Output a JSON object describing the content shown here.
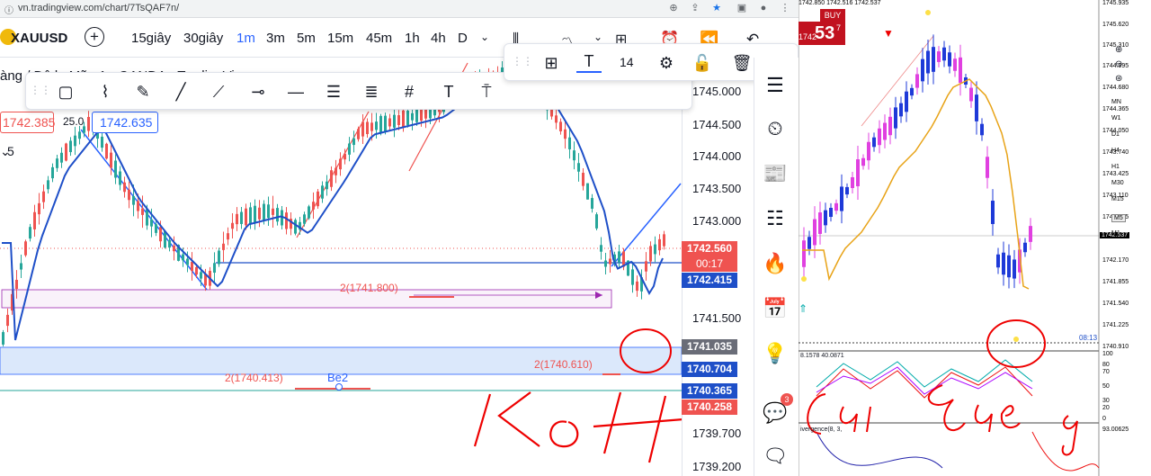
{
  "browser": {
    "url": "vn.tradingview.com/chart/7TsQAF7n/"
  },
  "toolbar": {
    "symbol": "XAUUSD",
    "intervals": [
      "15giây",
      "30giây",
      "1m",
      "3m",
      "5m",
      "15m",
      "45m",
      "1h",
      "4h",
      "D"
    ],
    "active_interval": "1m"
  },
  "floating_toolbar": {
    "font_size": "14"
  },
  "chart": {
    "legend_title": "àng / Đô la Mỹ · 1 · OANDA · TradingView",
    "sell_price": "1742.385",
    "buy_price": "1742.635",
    "spread": "25.0",
    "indicator_count": "5",
    "price_labels": [
      "1745.000",
      "1744.500",
      "1744.000",
      "1743.500",
      "1743.000",
      "1741.500",
      "1739.700",
      "1739.200"
    ],
    "current_price": "1742.560",
    "countdown": "00:17",
    "line_price_blue": "1742.415",
    "label_grey": "1741.035",
    "label_blue_1": "1740.704",
    "label_blue_2": "1740.365",
    "label_red": "1740.258",
    "level_1": "2(1741.800)",
    "level_2": "2(1740.610)",
    "level_3": "2(1740.413)",
    "be2": "Be2",
    "handwriting": "Ko Hút cái Bae a",
    "notification_count": "3",
    "colors": {
      "accent": "#2962ff",
      "bull": "#26a69a",
      "bear": "#ef5350",
      "ma": "#1e4fc8"
    }
  },
  "mt4": {
    "header_prices": "1742.850 1742.516 1742.537",
    "buy_label": "BUY",
    "buy_price_small": "1742",
    "buy_price_big": "53",
    "buy_price_sup": "7",
    "price_axis": [
      "1745.935",
      "1745.620",
      "1745.310",
      "1744.995",
      "1744.680",
      "1744.365",
      "1744.050",
      "1743.740",
      "1743.425",
      "1743.110",
      "1742.795",
      "1742.480",
      "1742.170",
      "1741.855",
      "1741.540",
      "1741.225",
      "1740.910"
    ],
    "current_price": "1742.537",
    "timer": "08:13",
    "timeframes": [
      "M1",
      "M5",
      "M15",
      "M30",
      "H1",
      "H4",
      "D1",
      "W1",
      "MN"
    ],
    "osc_label": "8.1578 40.0871",
    "osc_levels": [
      "100",
      "80",
      "70",
      "50",
      "30",
      "20",
      "0"
    ],
    "divergence_label": "ivergence(8, 3,",
    "divergence_value": "93.00625"
  }
}
